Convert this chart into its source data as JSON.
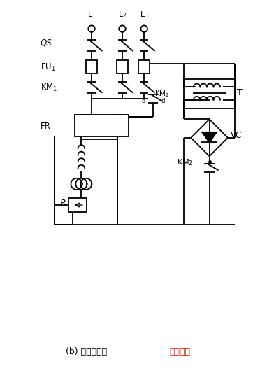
{
  "title_black": "(b) 单相桥式、",
  "title_red": "绕组并联",
  "background_color": "#ffffff",
  "figsize": [
    3.72,
    5.33
  ],
  "dpi": 100,
  "line_color": "#000000",
  "lw": 1.3,
  "labels": {
    "L1": "L$_1$",
    "L2": "L$_2$",
    "L3": "L$_3$",
    "QS": "QS",
    "FU1": "FU$_1$",
    "KM1": "KM$_1$",
    "KM2": "KM$_2$",
    "FR": "FR",
    "T": "T",
    "VC": "VC",
    "R": "$R$"
  }
}
